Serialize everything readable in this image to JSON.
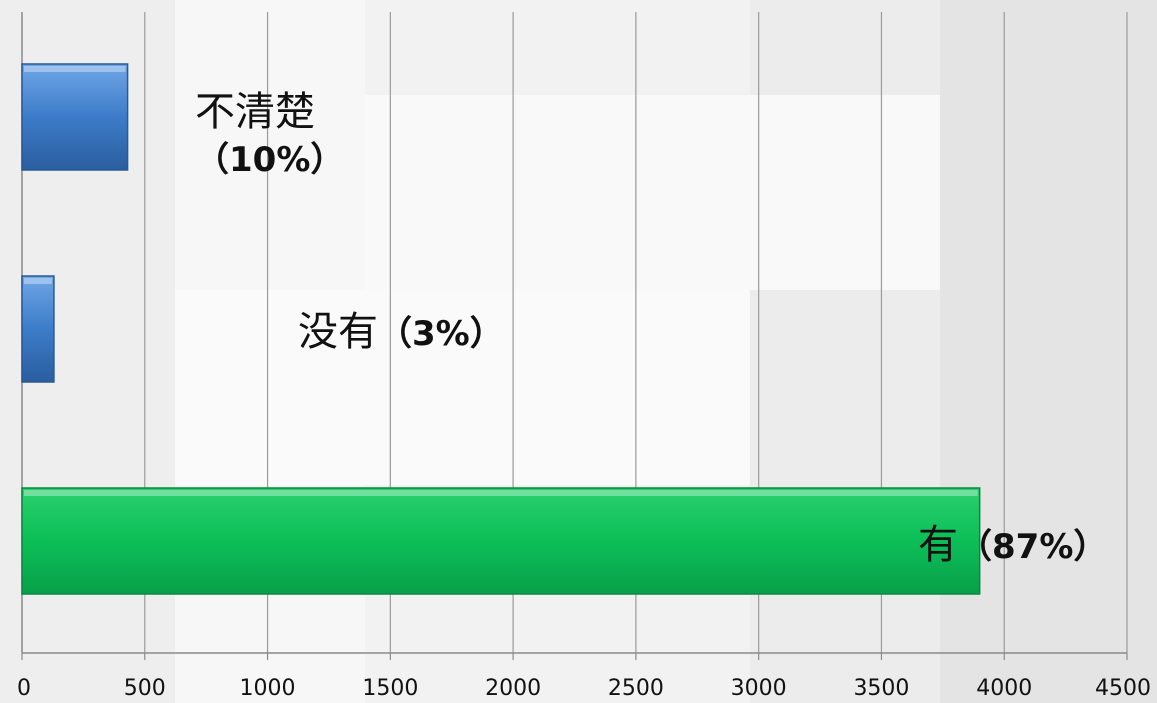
{
  "chart_data": {
    "type": "bar",
    "orientation": "horizontal",
    "categories": [
      "不清楚",
      "没有",
      "有"
    ],
    "values": [
      430,
      130,
      3900
    ],
    "data_labels": [
      {
        "name": "不清楚",
        "pct": "（10%）"
      },
      {
        "name": "没有",
        "pct": "（3%）"
      },
      {
        "name": "有",
        "pct": "（87%）"
      }
    ],
    "bar_colors": [
      "#3d7cc9",
      "#3d7cc9",
      "#0cbf57"
    ],
    "xlim": [
      0,
      4500
    ],
    "x_ticks": [
      "0",
      "500",
      "1000",
      "1500",
      "2000",
      "2500",
      "3000",
      "3500",
      "4000",
      "4500"
    ],
    "grid": "vertical",
    "legend": "none",
    "title": "",
    "xlabel": "",
    "ylabel": ""
  }
}
